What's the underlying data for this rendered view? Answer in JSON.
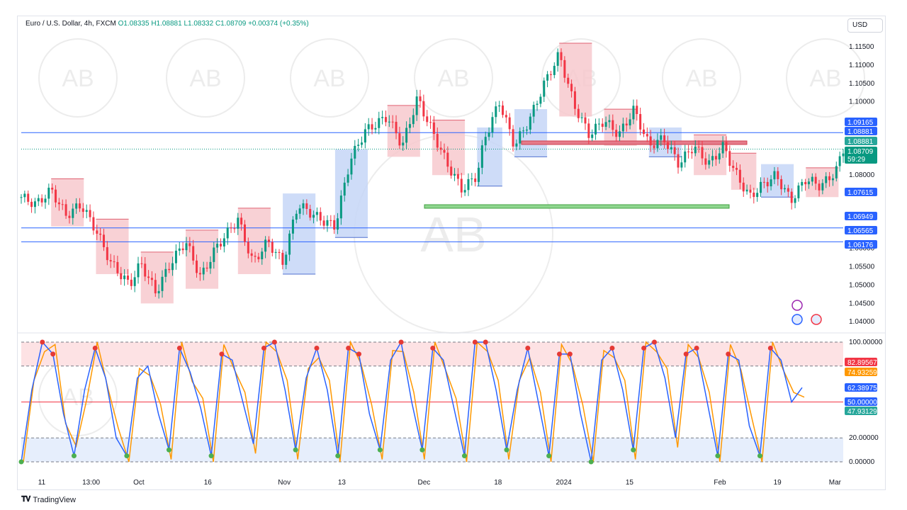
{
  "legend": {
    "symbol": "Euro / U.S. Dollar, 4h, FXCM",
    "ohlc": "O1.08335  H1.08881  L1.08332  C1.08709  +0.00374 (+0.35%)"
  },
  "currency": "USD",
  "brand": "TradingView",
  "watermark": "AB",
  "colors": {
    "up": "#089981",
    "down": "#f23645",
    "blue_line": "#2962ff",
    "supply_zone": "#f7c9ce",
    "demand_zone": "#c5d6f7",
    "green_zone": "#8fd68f",
    "red_zone": "#e57b8a",
    "stoch_k": "#2962ff",
    "stoch_d": "#ff9800"
  },
  "chart_data": [
    {
      "type": "candlestick",
      "title": "Euro / U.S. Dollar, 4h, FXCM",
      "ylim": [
        1.0385,
        1.1185
      ],
      "y_ticks": [
        "1.11500",
        "1.11000",
        "1.10500",
        "1.10000",
        "1.08000",
        "1.07500",
        "1.06000",
        "1.05500",
        "1.05000",
        "1.04500",
        "1.04000"
      ],
      "x_ticks": [
        "11",
        "13:00",
        "Oct",
        "16",
        "Nov",
        "13",
        "Dec",
        "18",
        "2024",
        "15",
        "Feb",
        "19",
        "Mar"
      ],
      "x_tick_pos": [
        0.025,
        0.085,
        0.143,
        0.227,
        0.32,
        0.39,
        0.49,
        0.58,
        0.66,
        0.74,
        0.85,
        0.92,
        0.99
      ],
      "horizontal_lines": [
        1.0916,
        1.0656,
        1.0618
      ],
      "dotted_line": 1.0871,
      "price_labels": [
        {
          "value": "1.09165",
          "color": "#2962ff"
        },
        {
          "value": "1.08881",
          "color": "#2962ff"
        },
        {
          "value": "1.08881",
          "color": "#26a69a"
        },
        {
          "value": "1.08709",
          "color": "#089981",
          "sub": "59:29"
        },
        {
          "value": "1.07615",
          "color": "#2962ff"
        },
        {
          "value": "1.06949",
          "color": "#2962ff"
        },
        {
          "value": "1.06565",
          "color": "#2962ff"
        },
        {
          "value": "1.06176",
          "color": "#2962ff"
        }
      ],
      "price_path": [
        [
          0.0,
          1.074
        ],
        [
          0.02,
          1.072
        ],
        [
          0.04,
          1.076
        ],
        [
          0.06,
          1.069
        ],
        [
          0.08,
          1.072
        ],
        [
          0.1,
          1.065
        ],
        [
          0.12,
          1.056
        ],
        [
          0.145,
          1.05
        ],
        [
          0.16,
          1.056
        ],
        [
          0.18,
          1.048
        ],
        [
          0.2,
          1.056
        ],
        [
          0.22,
          1.062
        ],
        [
          0.24,
          1.052
        ],
        [
          0.26,
          1.06
        ],
        [
          0.29,
          1.068
        ],
        [
          0.31,
          1.056
        ],
        [
          0.33,
          1.062
        ],
        [
          0.35,
          1.056
        ],
        [
          0.37,
          1.072
        ],
        [
          0.4,
          1.068
        ],
        [
          0.42,
          1.066
        ],
        [
          0.44,
          1.084
        ],
        [
          0.46,
          1.092
        ],
        [
          0.49,
          1.096
        ],
        [
          0.51,
          1.088
        ],
        [
          0.53,
          1.101
        ],
        [
          0.55,
          1.092
        ],
        [
          0.57,
          1.083
        ],
        [
          0.59,
          1.076
        ],
        [
          0.61,
          1.08
        ],
        [
          0.62,
          1.09
        ],
        [
          0.64,
          1.1
        ],
        [
          0.66,
          1.088
        ],
        [
          0.68,
          1.095
        ],
        [
          0.7,
          1.105
        ],
        [
          0.72,
          1.113
        ],
        [
          0.74,
          1.099
        ],
        [
          0.76,
          1.091
        ],
        [
          0.78,
          1.095
        ],
        [
          0.8,
          1.091
        ],
        [
          0.82,
          1.098
        ],
        [
          0.84,
          1.088
        ],
        [
          0.86,
          1.09
        ],
        [
          0.88,
          1.083
        ],
        [
          0.9,
          1.088
        ],
        [
          0.92,
          1.083
        ],
        [
          0.94,
          1.088
        ],
        [
          0.95,
          1.083
        ],
        [
          0.96,
          1.079
        ],
        [
          0.975,
          1.074
        ],
        [
          0.99,
          1.077
        ],
        [
          1.01,
          1.08
        ],
        [
          1.03,
          1.073
        ],
        [
          1.05,
          1.079
        ],
        [
          1.07,
          1.077
        ],
        [
          1.09,
          1.081
        ],
        [
          1.1,
          1.0871
        ]
      ]
    },
    {
      "type": "line",
      "title": "",
      "ylim": [
        0,
        100
      ],
      "y_ticks": [
        "100.00000",
        "20.00000",
        "0.00000"
      ],
      "bands": [
        80,
        20
      ],
      "midline": 50,
      "value_labels": [
        {
          "value": "82.89567",
          "color": "#f23645"
        },
        {
          "value": "74.93259",
          "color": "#ff9800"
        },
        {
          "value": "62.38975",
          "color": "#2962ff"
        },
        {
          "value": "50.00000",
          "color": "#2962ff"
        },
        {
          "value": "47.93129",
          "color": "#26a69a"
        }
      ],
      "series": [
        {
          "name": "",
          "values": [
            0,
            60,
            100,
            90,
            40,
            5,
            60,
            95,
            70,
            20,
            5,
            70,
            80,
            40,
            10,
            95,
            75,
            45,
            5,
            90,
            85,
            50,
            15,
            95,
            100,
            60,
            10,
            70,
            95,
            60,
            5,
            95,
            90,
            40,
            10,
            85,
            100,
            50,
            10,
            95,
            85,
            45,
            5,
            100,
            100,
            60,
            10,
            60,
            95,
            50,
            5,
            90,
            90,
            40,
            0,
            85,
            95,
            60,
            10,
            95,
            100,
            70,
            20,
            90,
            95,
            50,
            5,
            90,
            85,
            30,
            5,
            95,
            85,
            50,
            62
          ]
        }
      ]
    }
  ]
}
